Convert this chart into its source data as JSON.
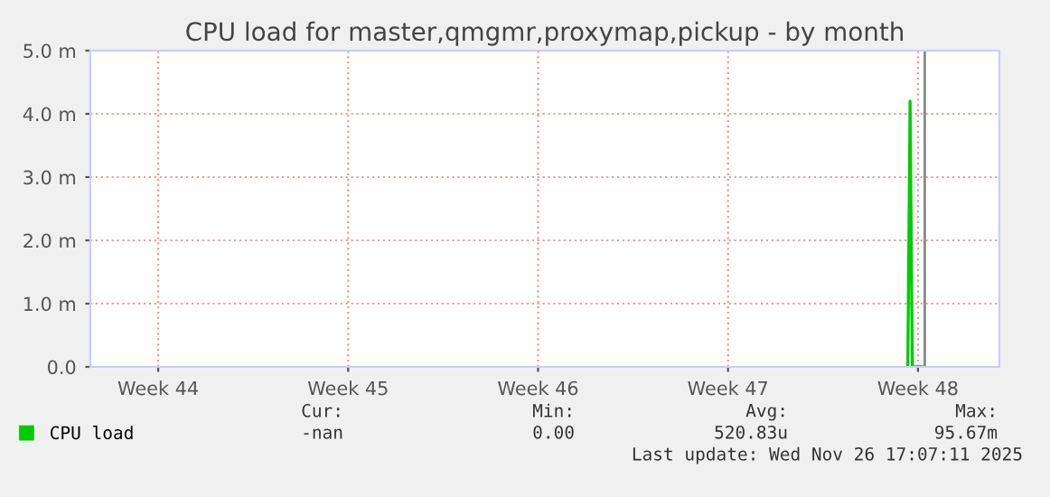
{
  "chart_data": {
    "type": "line",
    "title": "CPU load for master,qmgmr,proxymap,pickup - by month",
    "x": [
      "2025-11-27T03:00",
      "2025-11-27T05:00",
      "2025-11-27T07:00",
      "2025-11-27T18:00"
    ],
    "series": [
      {
        "name": "CPU load",
        "color": "#00cc00",
        "values": [
          0,
          4.2,
          0,
          0
        ]
      }
    ],
    "xlim": [
      "2025-10-28T00:00",
      "2025-11-30T12:00"
    ],
    "xticks": [
      {
        "value": "2025-10-30T12:00",
        "label": "Week 44"
      },
      {
        "value": "2025-11-06T12:00",
        "label": "Week 45"
      },
      {
        "value": "2025-11-13T12:00",
        "label": "Week 46"
      },
      {
        "value": "2025-11-20T12:00",
        "label": "Week 47"
      },
      {
        "value": "2025-11-27T12:00",
        "label": "Week 48"
      }
    ],
    "ylim": [
      0,
      5
    ],
    "yticks": [
      {
        "value": 0,
        "label": "0.0"
      },
      {
        "value": 1,
        "label": "1.0 m"
      },
      {
        "value": 2,
        "label": "2.0 m"
      },
      {
        "value": 3,
        "label": "3.0 m"
      },
      {
        "value": 4,
        "label": "4.0 m"
      },
      {
        "value": 5,
        "label": "5.0 m"
      }
    ],
    "ref_lines": [
      {
        "axis": "x",
        "value": "2025-11-27T18:00",
        "color": "#888888"
      }
    ],
    "grid": true,
    "legend": "bottom left",
    "annotations": [
      "Cur:",
      "Min:",
      "Avg:",
      "Max:",
      "-nan",
      "0.00",
      "520.83u",
      "95.67m",
      "Last update: Wed Nov 26 17:07:11 2025"
    ]
  }
}
